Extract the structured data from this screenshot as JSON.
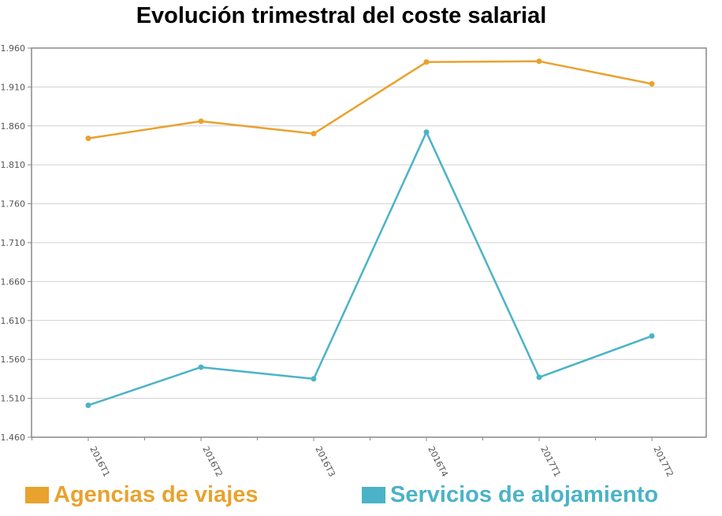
{
  "chart_data": {
    "type": "line",
    "title": "Evolución trimestral del coste salarial",
    "xlabel": "",
    "ylabel": "",
    "categories": [
      "2016T1",
      "2016T2",
      "2016T3",
      "2016T4",
      "2017T1",
      "2017T2"
    ],
    "y_ticks": [
      "1.460",
      "1.510",
      "1.560",
      "1.610",
      "1.660",
      "1.710",
      "1.760",
      "1.810",
      "1.860",
      "1.910",
      "1.960"
    ],
    "ylim": [
      1460,
      1960
    ],
    "grid": true,
    "legend_position": "bottom",
    "series": [
      {
        "name": "Agencias de viajes",
        "color": "#E9A22D",
        "values": [
          1844,
          1866,
          1850,
          1942,
          1943,
          1914
        ]
      },
      {
        "name": "Servicios de alojamiento",
        "color": "#4BB3C7",
        "values": [
          1501,
          1550,
          1535,
          1852,
          1537,
          1590
        ]
      }
    ]
  }
}
